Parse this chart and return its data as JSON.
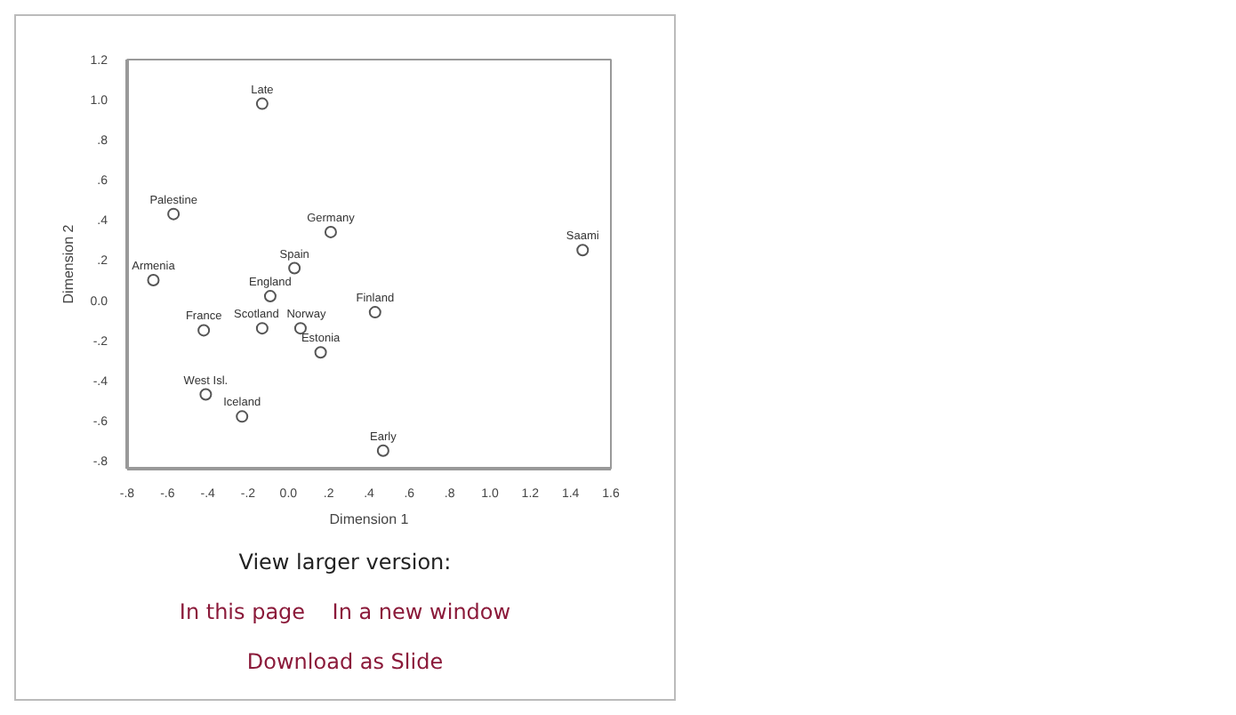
{
  "chart_data": {
    "type": "scatter",
    "xlabel": "Dimension 1",
    "ylabel": "Dimension 2",
    "x": [
      -0.13,
      -0.57,
      0.21,
      1.46,
      0.03,
      -0.67,
      -0.09,
      -0.42,
      -0.13,
      0.06,
      0.16,
      0.43,
      -0.41,
      -0.23,
      0.47
    ],
    "values": [
      0.98,
      0.43,
      0.34,
      0.25,
      0.16,
      0.1,
      0.02,
      -0.15,
      -0.14,
      -0.14,
      -0.26,
      -0.06,
      -0.47,
      -0.58,
      -0.75
    ],
    "color": "#555555",
    "marker": "circle",
    "grid": false,
    "xlim": [
      -0.8,
      1.6
    ],
    "ylim": [
      -0.84,
      1.2
    ],
    "xticks": [
      {
        "value": -0.8,
        "label": "-.8"
      },
      {
        "value": -0.6,
        "label": "-.6"
      },
      {
        "value": -0.4,
        "label": "-.4"
      },
      {
        "value": -0.2,
        "label": "-.2"
      },
      {
        "value": 0,
        "label": "0.0"
      },
      {
        "value": 0.2,
        "label": ".2"
      },
      {
        "value": 0.4,
        "label": ".4"
      },
      {
        "value": 0.6,
        "label": ".6"
      },
      {
        "value": 0.8,
        "label": ".8"
      },
      {
        "value": 1.0,
        "label": "1.0"
      },
      {
        "value": 1.2,
        "label": "1.2"
      },
      {
        "value": 1.4,
        "label": "1.4"
      },
      {
        "value": 1.6,
        "label": "1.6"
      }
    ],
    "yticks": [
      {
        "value": -0.8,
        "label": "-.8"
      },
      {
        "value": -0.6,
        "label": "-.6"
      },
      {
        "value": -0.4,
        "label": "-.4"
      },
      {
        "value": -0.2,
        "label": "-.2"
      },
      {
        "value": 0,
        "label": "0.0"
      },
      {
        "value": 0.2,
        "label": ".2"
      },
      {
        "value": 0.4,
        "label": ".4"
      },
      {
        "value": 0.6,
        "label": ".6"
      },
      {
        "value": 0.8,
        "label": ".8"
      },
      {
        "value": 1.0,
        "label": "1.0"
      },
      {
        "value": 1.2,
        "label": "1.2"
      }
    ],
    "annotations": [
      {
        "text": "Late",
        "x": -0.13,
        "y": 0.98
      },
      {
        "text": "Palestine",
        "x": -0.57,
        "y": 0.43
      },
      {
        "text": "Germany",
        "x": 0.21,
        "y": 0.34
      },
      {
        "text": "Saami",
        "x": 1.46,
        "y": 0.25
      },
      {
        "text": "Spain",
        "x": 0.03,
        "y": 0.16
      },
      {
        "text": "Armenia",
        "x": -0.67,
        "y": 0.1
      },
      {
        "text": "England",
        "x": -0.09,
        "y": 0.02
      },
      {
        "text": "France",
        "x": -0.42,
        "y": -0.15
      },
      {
        "text": "Scotland",
        "x": -0.13,
        "y": -0.14
      },
      {
        "text": "Norway",
        "x": 0.06,
        "y": -0.14
      },
      {
        "text": "Estonia",
        "x": 0.16,
        "y": -0.26
      },
      {
        "text": "Finland",
        "x": 0.43,
        "y": -0.06
      },
      {
        "text": "West Isl.",
        "x": -0.41,
        "y": -0.47
      },
      {
        "text": "Iceland",
        "x": -0.23,
        "y": -0.58
      },
      {
        "text": "Early",
        "x": 0.47,
        "y": -0.75
      },
      "View larger version:",
      "In this page",
      "In a new window",
      "Download as Slide"
    ]
  }
}
